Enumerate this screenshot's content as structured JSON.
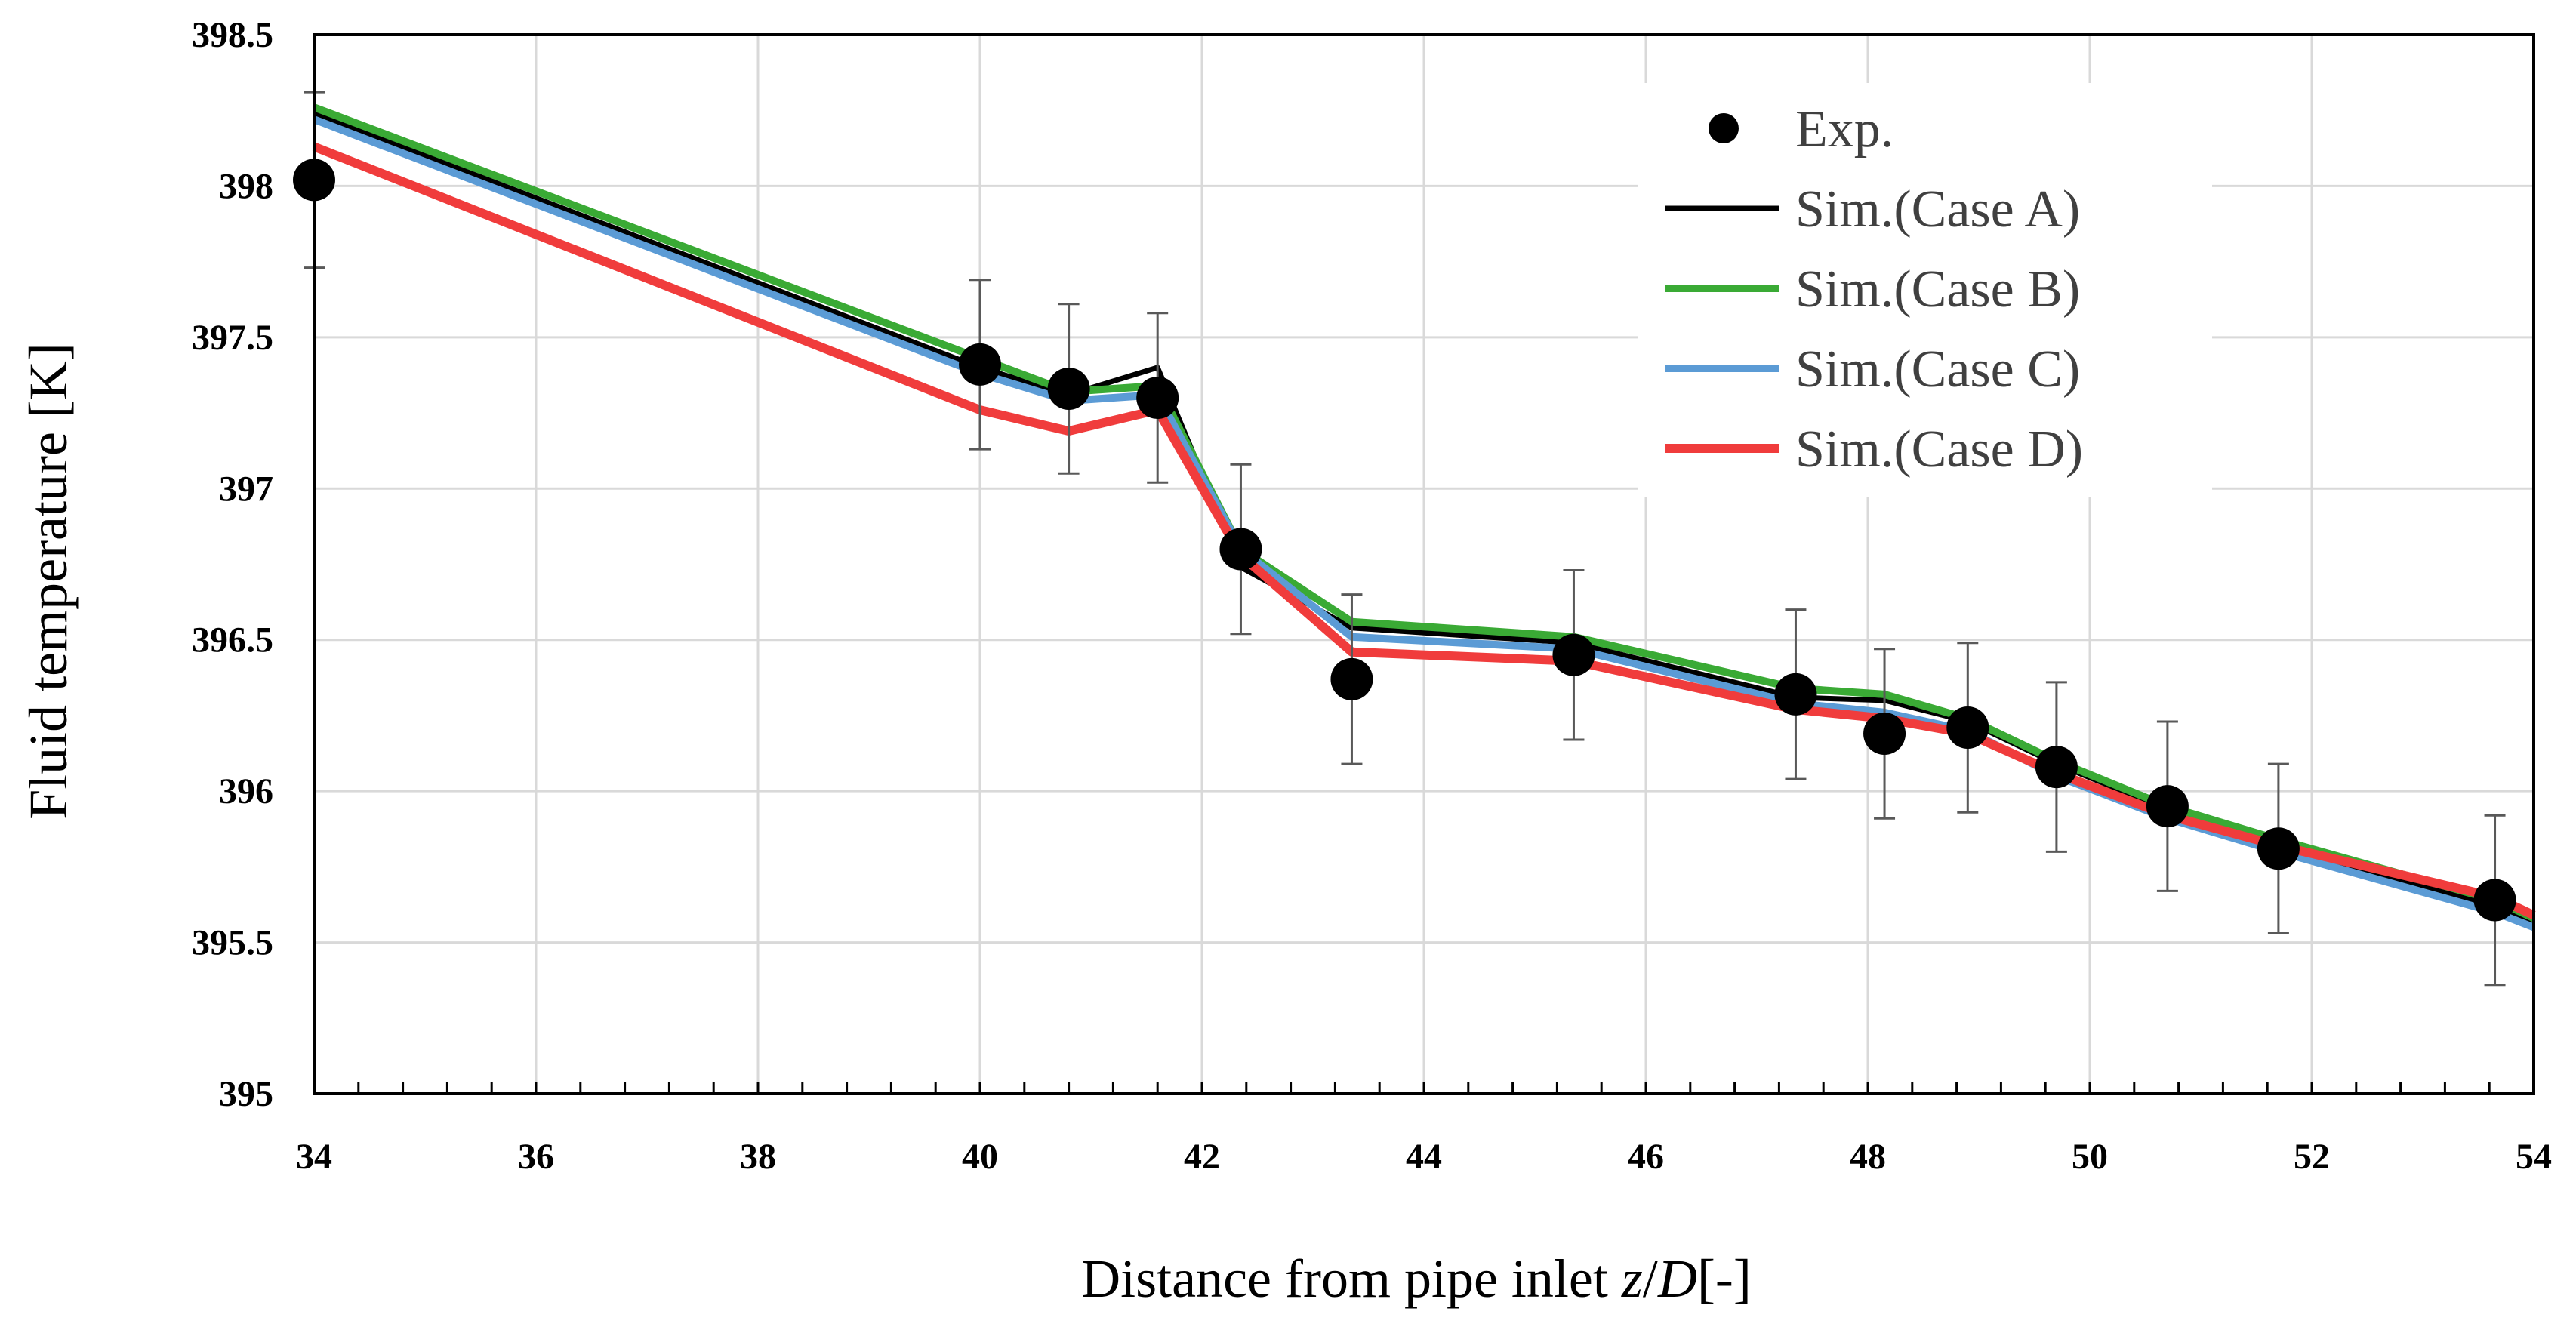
{
  "chart_data": {
    "type": "line",
    "title": "",
    "xlabel": "Distance from pipe inlet z/D[-]",
    "xlabel_parts": {
      "prefix": "Distance from pipe inlet ",
      "z": "z",
      "slash": "/",
      "d": "D",
      "suffix": "[-]"
    },
    "ylabel": "Fluid temperature [K]",
    "xlim": [
      34,
      54
    ],
    "ylim": [
      395,
      398.5
    ],
    "x_ticks": [
      34,
      36,
      38,
      40,
      42,
      44,
      46,
      48,
      50,
      52,
      54
    ],
    "x_tick_labels": [
      "34",
      "36",
      "38",
      "40",
      "42",
      "44",
      "46",
      "48",
      "50",
      "52",
      "54"
    ],
    "y_ticks": [
      395,
      395.5,
      396,
      396.5,
      397,
      397.5,
      398,
      398.5
    ],
    "y_tick_labels": [
      "395",
      "395.5",
      "396",
      "396.5",
      "397",
      "397.5",
      "398",
      "398.5"
    ],
    "grid": true,
    "legend_position": "top-right",
    "experiment": {
      "name": "Exp.",
      "color": "#000000",
      "points": [
        {
          "x": 34.0,
          "y": 398.02,
          "err": 0.29
        },
        {
          "x": 40.0,
          "y": 397.41,
          "err": 0.28
        },
        {
          "x": 40.8,
          "y": 397.33,
          "err": 0.28
        },
        {
          "x": 41.6,
          "y": 397.3,
          "err": 0.28
        },
        {
          "x": 42.35,
          "y": 396.8,
          "err": 0.28
        },
        {
          "x": 43.35,
          "y": 396.37,
          "err": 0.28
        },
        {
          "x": 45.35,
          "y": 396.45,
          "err": 0.28
        },
        {
          "x": 47.35,
          "y": 396.32,
          "err": 0.28
        },
        {
          "x": 48.15,
          "y": 396.19,
          "err": 0.28
        },
        {
          "x": 48.9,
          "y": 396.21,
          "err": 0.28
        },
        {
          "x": 49.7,
          "y": 396.08,
          "err": 0.28
        },
        {
          "x": 50.7,
          "y": 395.95,
          "err": 0.28
        },
        {
          "x": 51.7,
          "y": 395.81,
          "err": 0.28
        },
        {
          "x": 53.65,
          "y": 395.64,
          "err": 0.28
        }
      ]
    },
    "series": [
      {
        "name": "Sim.(Case A)",
        "color": "#000000",
        "x": [
          34,
          40,
          40.8,
          41.6,
          42.35,
          43.35,
          45.35,
          47.35,
          48.15,
          48.9,
          49.7,
          50.7,
          51.7,
          53.65,
          54
        ],
        "y": [
          398.24,
          397.4,
          397.31,
          397.4,
          396.74,
          396.54,
          396.49,
          396.31,
          396.3,
          396.23,
          396.09,
          395.94,
          395.82,
          395.62,
          395.57
        ]
      },
      {
        "name": "Sim.(Case B)",
        "color": "#3aaa35",
        "x": [
          34,
          40,
          40.8,
          41.6,
          42.35,
          43.35,
          45.35,
          47.35,
          48.15,
          48.9,
          49.7,
          50.7,
          51.7,
          53.65,
          54
        ],
        "y": [
          398.26,
          397.43,
          397.32,
          397.34,
          396.8,
          396.56,
          396.51,
          396.34,
          396.32,
          396.24,
          396.1,
          395.95,
          395.84,
          395.64,
          395.58
        ]
      },
      {
        "name": "Sim.(Case C)",
        "color": "#5b9bd5",
        "x": [
          34,
          40,
          40.8,
          41.6,
          42.35,
          43.35,
          45.35,
          47.35,
          48.15,
          48.9,
          49.7,
          50.7,
          51.7,
          53.65,
          54
        ],
        "y": [
          398.22,
          397.38,
          397.29,
          397.31,
          396.8,
          396.51,
          396.47,
          396.29,
          396.26,
          396.2,
          396.05,
          395.91,
          395.8,
          395.6,
          395.55
        ]
      },
      {
        "name": "Sim.(Case D)",
        "color": "#f03c3c",
        "x": [
          34,
          40,
          40.8,
          41.6,
          42.35,
          43.35,
          45.35,
          47.35,
          48.15,
          48.9,
          49.7,
          50.7,
          51.7,
          53.65,
          54
        ],
        "y": [
          398.13,
          397.26,
          397.19,
          397.26,
          396.78,
          396.46,
          396.43,
          396.27,
          396.24,
          396.19,
          396.06,
          395.92,
          395.82,
          395.65,
          395.59
        ]
      }
    ]
  }
}
